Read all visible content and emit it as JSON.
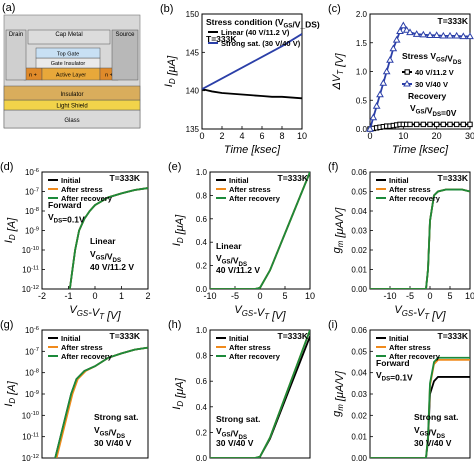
{
  "colors": {
    "black": "#000000",
    "blue": "#2b3fa8",
    "orange": "#f08a1c",
    "green": "#1c8a3a",
    "glass": "#dadada",
    "light_shield": "#f2d34a",
    "insulator": "#d9ad5c",
    "active_layer": "#e8a83a",
    "n_plus": "#e08a2a",
    "gate_insulator": "#eaeaea",
    "top_gate": "#c8e0f4",
    "cap_metal": "#dcdcdc",
    "electrode": "#b8b8b8",
    "drain_fill": "#cfcfcf"
  },
  "panel_a": {
    "letter": "(a)",
    "labels": {
      "drain": "Drain",
      "cap_metal": "Cap Metal",
      "source": "Source",
      "top_gate": "Top Gate",
      "gate_insulator": "Gate Insulator",
      "n_plus_left": "n +",
      "active_layer": "Active Layer",
      "n_plus_right": "n +",
      "insulator": "Insulator",
      "light_shield": "Light Shield",
      "glass": "Glass"
    }
  },
  "chart_data": [
    {
      "id": "b",
      "letter": "(b)",
      "type": "line",
      "xlabel": "Time [ksec]",
      "ylabel": "I_D [μA]",
      "xlim": [
        0,
        10
      ],
      "ylim": [
        135,
        150
      ],
      "xticks": [
        "0",
        "2",
        "4",
        "6",
        "8",
        "10"
      ],
      "yticks": [
        "135",
        "140",
        "145",
        "150"
      ],
      "annotations": [
        "Stress condition (V_GS/V_DS)",
        "T=333K"
      ],
      "series": [
        {
          "name": "Linear (40 V/11.2 V)",
          "color": "black",
          "x": [
            0,
            1,
            2,
            3,
            4,
            5,
            6,
            7,
            8,
            9,
            10
          ],
          "y": [
            140.2,
            139.9,
            139.7,
            139.6,
            139.5,
            139.4,
            139.3,
            139.2,
            139.2,
            139.1,
            139.0
          ]
        },
        {
          "name": "Strong sat. (30 V/40 V)",
          "color": "blue",
          "x": [
            0,
            1,
            2,
            3,
            4,
            5,
            6,
            7,
            8,
            9,
            10
          ],
          "y": [
            140.2,
            140.9,
            141.6,
            142.3,
            143.0,
            143.7,
            144.4,
            145.1,
            145.8,
            146.6,
            147.4
          ]
        }
      ]
    },
    {
      "id": "c",
      "letter": "(c)",
      "type": "line",
      "xlabel": "Time [ksec]",
      "ylabel": "ΔV_T [V]",
      "xlim": [
        0,
        30
      ],
      "ylim": [
        0,
        2.0
      ],
      "xticks": [
        "0",
        "10",
        "20",
        "30"
      ],
      "yticks": [
        "0.0",
        "0.5",
        "1.0",
        "1.5",
        "2.0"
      ],
      "annotations": [
        "T=333K",
        "Stress V_GS/V_DS",
        "Recovery",
        "V_GS/V_DS=0V"
      ],
      "series": [
        {
          "name": "40 V/11.2 V",
          "color": "black",
          "marker": "square",
          "x": [
            0,
            1,
            2,
            3,
            4,
            5,
            6,
            7,
            8,
            9,
            10,
            11,
            12,
            14,
            16,
            18,
            20,
            22,
            24,
            26,
            28,
            30
          ],
          "y": [
            0,
            0.01,
            0.02,
            0.03,
            0.04,
            0.05,
            0.05,
            0.06,
            0.07,
            0.08,
            0.08,
            0.08,
            0.08,
            0.08,
            0.08,
            0.08,
            0.08,
            0.08,
            0.08,
            0.08,
            0.08,
            0.08
          ]
        },
        {
          "name": "30 V/40 V",
          "color": "blue",
          "marker": "triangle",
          "x": [
            0,
            1,
            2,
            3,
            4,
            5,
            6,
            7,
            8,
            9,
            10,
            11,
            12,
            14,
            16,
            18,
            20,
            22,
            24,
            26,
            28,
            30
          ],
          "y": [
            0,
            0.2,
            0.4,
            0.6,
            0.8,
            1.0,
            1.2,
            1.4,
            1.55,
            1.7,
            1.8,
            1.72,
            1.68,
            1.65,
            1.64,
            1.63,
            1.63,
            1.62,
            1.62,
            1.62,
            1.61,
            1.61
          ]
        }
      ]
    },
    {
      "id": "d",
      "letter": "(d)",
      "type": "line",
      "yscale": "log",
      "xlabel": "V_GS-V_T [V]",
      "ylabel": "I_D [A]",
      "xlim": [
        -2,
        2
      ],
      "ylim": [
        1e-12,
        1e-06
      ],
      "xticks": [
        "-2",
        "-1",
        "0",
        "1",
        "2"
      ],
      "yticks": [
        "10^-12",
        "10^-11",
        "10^-10",
        "10^-9",
        "10^-8",
        "10^-7",
        "10^-6"
      ],
      "annotations": [
        "T=333K",
        "Forward",
        "V_DS=0.1V",
        "Linear",
        "V_GS/V_DS",
        "40 V/11.2 V"
      ],
      "series": [
        {
          "name": "Initial",
          "color": "black",
          "x": [
            -0.95,
            -0.85,
            -0.75,
            -0.6,
            -0.4,
            -0.2,
            0,
            0.5,
            1,
            1.5,
            2
          ],
          "y": [
            1e-12,
            1e-11,
            1e-10,
            1e-09,
            4e-09,
            1e-08,
            2e-08,
            5e-08,
            8e-08,
            1.2e-07,
            1.5e-07
          ]
        },
        {
          "name": "After stress",
          "color": "orange",
          "x": [
            -0.95,
            -0.85,
            -0.75,
            -0.6,
            -0.4,
            -0.2,
            0,
            0.5,
            1,
            1.5,
            2
          ],
          "y": [
            1e-12,
            1e-11,
            1e-10,
            1e-09,
            4e-09,
            1e-08,
            2e-08,
            5e-08,
            8e-08,
            1.2e-07,
            1.5e-07
          ]
        },
        {
          "name": "After recovery",
          "color": "green",
          "x": [
            -0.95,
            -0.85,
            -0.75,
            -0.6,
            -0.4,
            -0.2,
            0,
            0.5,
            1,
            1.5,
            2
          ],
          "y": [
            1e-12,
            1e-11,
            1e-10,
            1e-09,
            4e-09,
            1e-08,
            2e-08,
            5e-08,
            8e-08,
            1.2e-07,
            1.5e-07
          ]
        }
      ]
    },
    {
      "id": "e",
      "letter": "(e)",
      "type": "line",
      "xlabel": "V_GS-V_T [V]",
      "ylabel": "I_D [μA]",
      "xlim": [
        -10,
        10
      ],
      "ylim": [
        0,
        1.0
      ],
      "xticks": [
        "-10",
        "-5",
        "0",
        "5",
        "10"
      ],
      "yticks": [
        "0.0",
        "0.2",
        "0.4",
        "0.6",
        "0.8",
        "1.0"
      ],
      "annotations": [
        "T=333K",
        "Linear",
        "V_GS/V_DS",
        "40 V/11.2 V"
      ],
      "series": [
        {
          "name": "Initial",
          "color": "black",
          "x": [
            -10,
            -1,
            0,
            2,
            4,
            6,
            8,
            10
          ],
          "y": [
            0,
            0,
            0.01,
            0.16,
            0.37,
            0.58,
            0.79,
            1.0
          ]
        },
        {
          "name": "After stress",
          "color": "orange",
          "x": [
            -10,
            -1,
            0,
            2,
            4,
            6,
            8,
            10
          ],
          "y": [
            0,
            0,
            0.01,
            0.16,
            0.37,
            0.58,
            0.79,
            1.0
          ]
        },
        {
          "name": "After recovery",
          "color": "green",
          "x": [
            -10,
            -1,
            0,
            2,
            4,
            6,
            8,
            10
          ],
          "y": [
            0,
            0,
            0.01,
            0.16,
            0.37,
            0.58,
            0.79,
            1.0
          ]
        }
      ]
    },
    {
      "id": "f",
      "letter": "(f)",
      "type": "line",
      "xlabel": "V_GS-V_T [V]",
      "ylabel": "g_m [μA/V]",
      "xlim": [
        -15,
        10
      ],
      "ylim": [
        0,
        0.06
      ],
      "xticks": [
        "-10",
        "-5",
        "0",
        "5",
        "10"
      ],
      "yticks": [
        "0.00",
        "0.01",
        "0.02",
        "0.03",
        "0.04",
        "0.05",
        "0.06"
      ],
      "annotations": [
        "T=333K"
      ],
      "series": [
        {
          "name": "Initial",
          "color": "black",
          "x": [
            -15,
            -1,
            -0.5,
            0,
            1,
            2,
            4,
            6,
            8,
            10
          ],
          "y": [
            0,
            0,
            0.01,
            0.035,
            0.048,
            0.05,
            0.051,
            0.051,
            0.051,
            0.05
          ]
        },
        {
          "name": "After stress",
          "color": "orange",
          "x": [
            -15,
            -1,
            -0.5,
            0,
            1,
            2,
            4,
            6,
            8,
            10
          ],
          "y": [
            0,
            0,
            0.01,
            0.035,
            0.048,
            0.05,
            0.051,
            0.051,
            0.051,
            0.05
          ]
        },
        {
          "name": "After recovery",
          "color": "green",
          "x": [
            -15,
            -1,
            -0.5,
            0,
            1,
            2,
            4,
            6,
            8,
            10
          ],
          "y": [
            0,
            0,
            0.01,
            0.035,
            0.048,
            0.05,
            0.051,
            0.051,
            0.051,
            0.05
          ]
        }
      ]
    },
    {
      "id": "g",
      "letter": "(g)",
      "type": "line",
      "yscale": "log",
      "xlabel": "V_GS-V_T [V]",
      "ylabel": "I_D [A]",
      "xlim": [
        -2,
        2
      ],
      "ylim": [
        1e-12,
        1e-06
      ],
      "xticks": [],
      "yticks": [
        "10^-12",
        "10^-11",
        "10^-10",
        "10^-9",
        "10^-8",
        "10^-7",
        "10^-6"
      ],
      "annotations": [
        "T=333K",
        "Strong sat.",
        "V_GS/V_DS",
        "30 V/40 V"
      ],
      "series": [
        {
          "name": "Initial",
          "color": "black",
          "x": [
            -1.5,
            -1.3,
            -1.1,
            -0.9,
            -0.7,
            -0.4,
            0,
            0.5,
            1,
            1.5,
            2
          ],
          "y": [
            1e-12,
            1e-11,
            1e-10,
            1e-09,
            5e-09,
            1.2e-08,
            2e-08,
            5e-08,
            8e-08,
            1.2e-07,
            1.5e-07
          ]
        },
        {
          "name": "After stress",
          "color": "orange",
          "x": [
            -1.45,
            -1.25,
            -1.05,
            -0.85,
            -0.65,
            -0.35,
            0,
            0.5,
            1,
            1.5,
            2
          ],
          "y": [
            1e-12,
            1e-11,
            1e-10,
            1e-09,
            5e-09,
            1.2e-08,
            2e-08,
            5e-08,
            8e-08,
            1.2e-07,
            1.5e-07
          ]
        },
        {
          "name": "After recovery",
          "color": "green",
          "x": [
            -1.5,
            -1.3,
            -1.1,
            -0.9,
            -0.7,
            -0.4,
            0,
            0.5,
            1,
            1.5,
            2
          ],
          "y": [
            1e-12,
            1e-11,
            1e-10,
            1e-09,
            5e-09,
            1.2e-08,
            2e-08,
            5e-08,
            8e-08,
            1.2e-07,
            1.5e-07
          ]
        }
      ]
    },
    {
      "id": "h",
      "letter": "(h)",
      "type": "line",
      "xlabel": "V_GS-V_T [V]",
      "ylabel": "I_D [μA]",
      "xlim": [
        -10,
        10
      ],
      "ylim": [
        0,
        1.0
      ],
      "xticks": [],
      "yticks": [
        "0.0",
        "0.2",
        "0.4",
        "0.6",
        "0.8",
        "1.0"
      ],
      "annotations": [
        "T=333K",
        "Strong sat.",
        "V_GS/V_DS",
        "30 V/40 V"
      ],
      "series": [
        {
          "name": "Initial",
          "color": "black",
          "x": [
            -10,
            -1,
            0,
            2,
            4,
            6,
            8,
            10
          ],
          "y": [
            0,
            0,
            0.01,
            0.15,
            0.35,
            0.55,
            0.75,
            0.95
          ]
        },
        {
          "name": "After stress",
          "color": "orange",
          "x": [
            -10,
            -1,
            0,
            2,
            4,
            6,
            8,
            10
          ],
          "y": [
            0,
            0,
            0.01,
            0.16,
            0.37,
            0.58,
            0.79,
            1.0
          ]
        },
        {
          "name": "After recovery",
          "color": "green",
          "x": [
            -10,
            -1,
            0,
            2,
            4,
            6,
            8,
            10
          ],
          "y": [
            0,
            0,
            0.01,
            0.16,
            0.37,
            0.58,
            0.79,
            1.0
          ]
        }
      ]
    },
    {
      "id": "i",
      "letter": "(i)",
      "type": "line",
      "xlabel": "V_GS-V_T [V]",
      "ylabel": "g_m [μA/V]",
      "xlim": [
        -15,
        10
      ],
      "ylim": [
        0,
        0.06
      ],
      "xticks": [],
      "yticks": [
        "0.00",
        "0.01",
        "0.02",
        "0.03",
        "0.04",
        "0.05",
        "0.06"
      ],
      "annotations": [
        "T=333K",
        "Forward",
        "V_DS=0.1V",
        "Strong sat.",
        "V_GS/V_DS",
        "30 V/40 V"
      ],
      "series": [
        {
          "name": "Initial",
          "color": "black",
          "x": [
            -15,
            -1,
            -0.5,
            0,
            1,
            2,
            4,
            6,
            8,
            10
          ],
          "y": [
            0,
            0,
            0.008,
            0.03,
            0.036,
            0.038,
            0.038,
            0.038,
            0.038,
            0.038
          ]
        },
        {
          "name": "After stress",
          "color": "orange",
          "x": [
            -15,
            -1,
            -0.5,
            0,
            1,
            2,
            4,
            6,
            8,
            10
          ],
          "y": [
            0,
            0,
            0.01,
            0.034,
            0.044,
            0.046,
            0.046,
            0.046,
            0.046,
            0.046
          ]
        },
        {
          "name": "After recovery",
          "color": "green",
          "x": [
            -15,
            -1,
            -0.5,
            0,
            1,
            2,
            4,
            6,
            8,
            10
          ],
          "y": [
            0,
            0,
            0.01,
            0.035,
            0.045,
            0.047,
            0.047,
            0.047,
            0.047,
            0.047
          ]
        }
      ]
    }
  ]
}
